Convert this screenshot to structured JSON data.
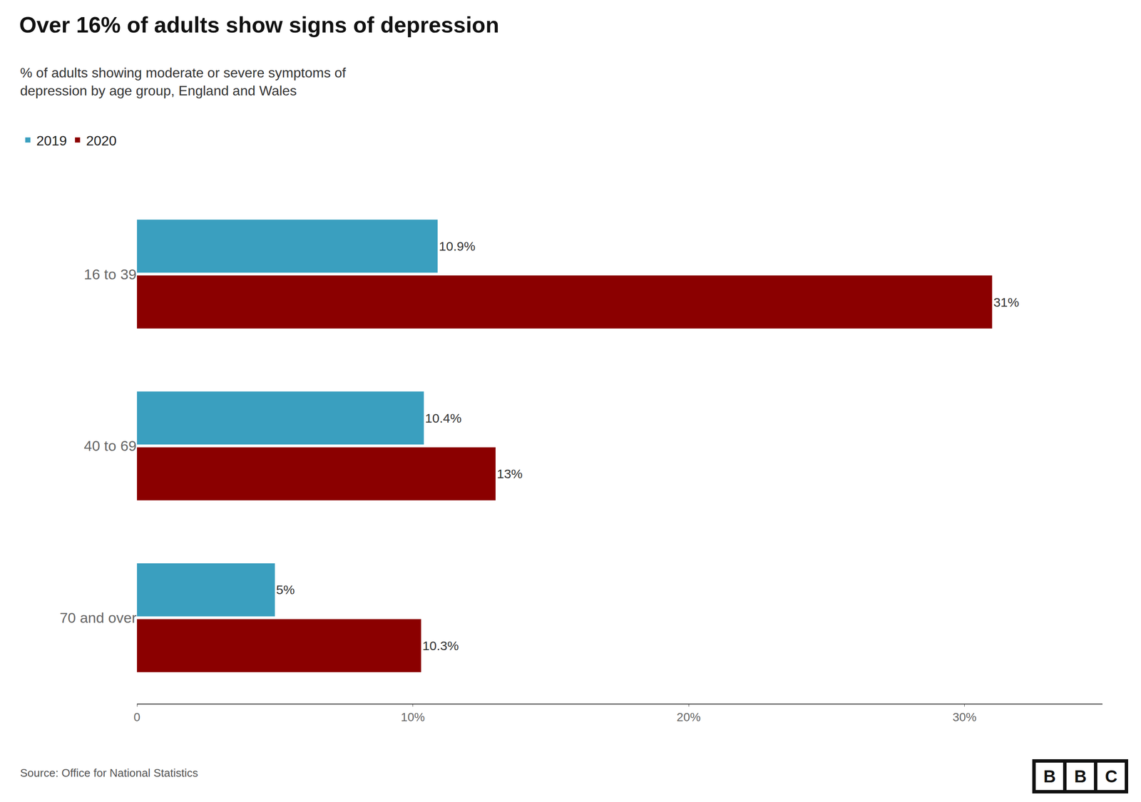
{
  "chart_data": {
    "type": "bar",
    "orientation": "horizontal",
    "title": "Over 16% of adults show signs of depression",
    "subtitle": "% of adults showing moderate or severe symptoms of\ndepression by age group, England and Wales",
    "source": "Source: Office for National Statistics",
    "logo": "BBC",
    "categories": [
      "16 to 39",
      "40 to 69",
      "70 and over"
    ],
    "series": [
      {
        "name": "2019",
        "color": "#3a9fbf",
        "values": [
          10.9,
          10.4,
          5.0
        ],
        "value_labels": [
          "10.9%",
          "10.4%",
          "5%"
        ]
      },
      {
        "name": "2020",
        "color": "#8b0000",
        "values": [
          31.0,
          13.0,
          10.3
        ],
        "value_labels": [
          "31%",
          "13%",
          "10.3%"
        ]
      }
    ],
    "xlim": [
      0,
      35
    ],
    "xticks": [
      0,
      {
        "value": 10,
        "label": "10%"
      },
      {
        "value": 20,
        "label": "20%"
      },
      {
        "value": 30,
        "label": "30%"
      }
    ],
    "legend": "top left",
    "grid": false
  }
}
